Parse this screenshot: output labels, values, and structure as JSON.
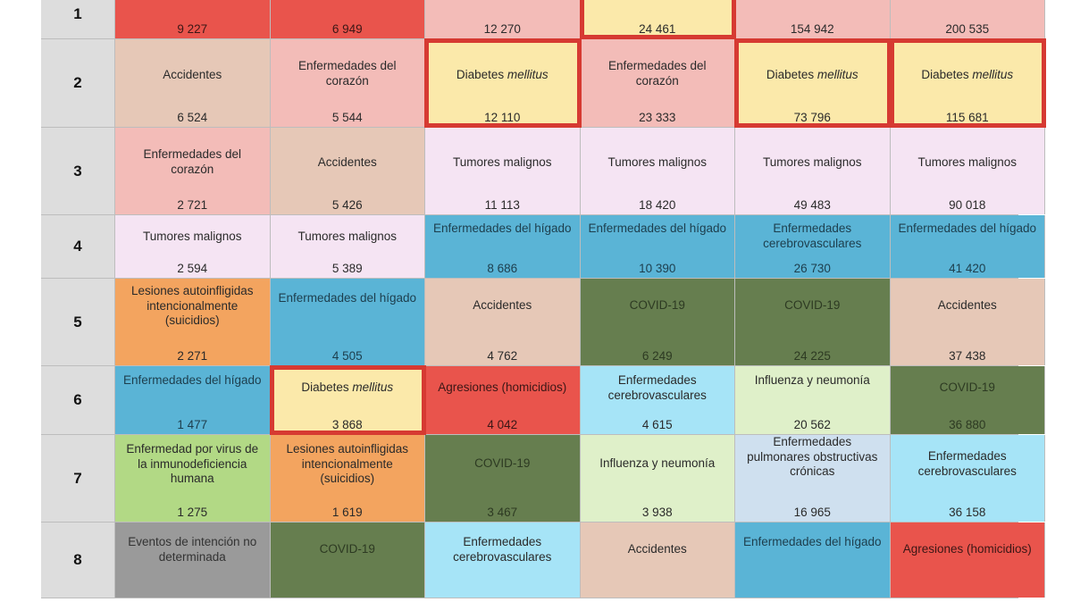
{
  "rows": [
    {
      "rank": "1",
      "cells": [
        {
          "cause": "",
          "value": "9 227",
          "color": "#e9544c"
        },
        {
          "cause": "",
          "value": "6 949",
          "color": "#e9544c"
        },
        {
          "cause": "",
          "value": "12 270",
          "color": "#f3bcb8"
        },
        {
          "cause": "",
          "value": "24 461",
          "color": "#fbe9aa"
        },
        {
          "cause": "",
          "value": "154 942",
          "color": "#f3bcb8"
        },
        {
          "cause": "",
          "value": "200 535",
          "color": "#f3bcb8"
        }
      ]
    },
    {
      "rank": "2",
      "cells": [
        {
          "cause": "Accidentes",
          "value": "6 524"
        },
        {
          "cause": "Enfermedades del corazón",
          "value": "5 544"
        },
        {
          "cause_a": "Diabetes",
          "cause_b": "mellitus",
          "value": "12 110"
        },
        {
          "cause": "Enfermedades del corazón",
          "value": "23 333"
        },
        {
          "cause_a": "Diabetes",
          "cause_b": "mellitus",
          "value": "73 796"
        },
        {
          "cause_a": "Diabetes",
          "cause_b": "mellitus",
          "value": "115 681"
        }
      ]
    },
    {
      "rank": "3",
      "cells": [
        {
          "cause": "Enfermedades del corazón",
          "value": "2 721"
        },
        {
          "cause": "Accidentes",
          "value": "5 426"
        },
        {
          "cause": "Tumores malignos",
          "value": "11 113"
        },
        {
          "cause": "Tumores malignos",
          "value": "18 420"
        },
        {
          "cause": "Tumores malignos",
          "value": "49 483"
        },
        {
          "cause": "Tumores malignos",
          "value": "90 018"
        }
      ]
    },
    {
      "rank": "4",
      "cells": [
        {
          "cause": "Tumores malignos",
          "value": "2 594"
        },
        {
          "cause": "Tumores malignos",
          "value": "5 389"
        },
        {
          "cause": "Enfermedades del hígado",
          "value": "8 686"
        },
        {
          "cause": "Enfermedades del hígado",
          "value": "10 390"
        },
        {
          "cause": "Enfermedades cerebrovasculares",
          "value": "26 730"
        },
        {
          "cause": "Enfermedades del hígado",
          "value": "41 420"
        }
      ]
    },
    {
      "rank": "5",
      "cells": [
        {
          "cause": "Lesiones autoinfligidas intencionalmente (suicidios)",
          "value": "2 271"
        },
        {
          "cause": "Enfermedades del hígado",
          "value": "4 505"
        },
        {
          "cause": "Accidentes",
          "value": "4 762"
        },
        {
          "cause": "COVID-19",
          "value": "6 249"
        },
        {
          "cause": "COVID-19",
          "value": "24 225"
        },
        {
          "cause": "Accidentes",
          "value": "37 438"
        }
      ]
    },
    {
      "rank": "6",
      "cells": [
        {
          "cause": "Enfermedades del hígado",
          "value": "1 477"
        },
        {
          "cause_a": "Diabetes",
          "cause_b": "mellitus",
          "value": "3 868"
        },
        {
          "cause": "Agresiones (homicidios)",
          "value": "4 042"
        },
        {
          "cause": "Enfermedades cerebrovasculares",
          "value": "4 615"
        },
        {
          "cause": "Influenza y neumonía",
          "value": "20 562"
        },
        {
          "cause": "COVID-19",
          "value": "36 880"
        }
      ]
    },
    {
      "rank": "7",
      "cells": [
        {
          "cause": "Enfermedad por virus de la inmunodeficiencia humana",
          "value": "1 275"
        },
        {
          "cause": "Lesiones autoinfligidas intencionalmente (suicidios)",
          "value": "1 619"
        },
        {
          "cause": "COVID-19",
          "value": "3 467"
        },
        {
          "cause": "Influenza y neumonía",
          "value": "3 938"
        },
        {
          "cause": "Enfermedades pulmonares obstructivas crónicas",
          "value": "16 965"
        },
        {
          "cause": "Enfermedades cerebrovasculares",
          "value": "36 158"
        }
      ]
    },
    {
      "rank": "8",
      "cells": [
        {
          "cause": "Eventos de intención no determinada",
          "value": ""
        },
        {
          "cause": "COVID-19",
          "value": ""
        },
        {
          "cause": "Enfermedades cerebrovasculares",
          "value": ""
        },
        {
          "cause": "Accidentes",
          "value": ""
        },
        {
          "cause": "Enfermedades del hígado",
          "value": ""
        },
        {
          "cause": "Agresiones (homicidios)",
          "value": ""
        }
      ]
    }
  ]
}
